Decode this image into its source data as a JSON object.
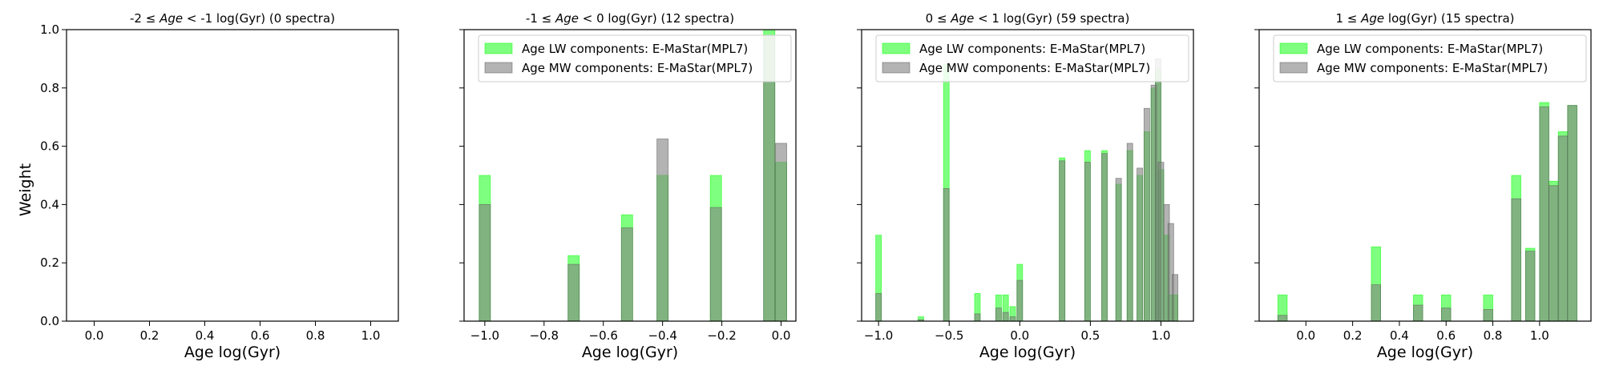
{
  "figure": {
    "ylabel": "Weight",
    "colors": {
      "lw": "#00ff00",
      "mw": "#808080"
    }
  },
  "chart_data": [
    {
      "type": "bar",
      "title_pre": "-2",
      "title_sym": "≤",
      "title_em": "Age",
      "title_post": " < -1 log(Gyr) (0 spectra)",
      "xlabel": "Age log(Gyr)",
      "ylabel": "Weight",
      "xlim": [
        -0.1,
        1.1
      ],
      "ylim": [
        0,
        1.0
      ],
      "xticks": [
        "0.0",
        "0.2",
        "0.4",
        "0.6",
        "0.8",
        "1.0"
      ],
      "xtick_values": [
        0.0,
        0.2,
        0.4,
        0.6,
        0.8,
        1.0
      ],
      "yticks": [
        "0.0",
        "0.2",
        "0.4",
        "0.6",
        "0.8",
        "1.0"
      ],
      "ytick_values": [
        0.0,
        0.2,
        0.4,
        0.6,
        0.8,
        1.0
      ],
      "show_yticklabels": true,
      "legend": null,
      "bar_width": 0,
      "series": []
    },
    {
      "type": "bar",
      "title_pre": "-1",
      "title_sym": "≤",
      "title_em": "Age",
      "title_post": " < 0 log(Gyr) (12 spectra)",
      "xlabel": "Age log(Gyr)",
      "xlim": [
        -1.07,
        0.05
      ],
      "ylim": [
        0,
        1.0
      ],
      "xticks": [
        "−1.0",
        "−0.8",
        "−0.6",
        "−0.4",
        "−0.2",
        "0.0"
      ],
      "xtick_values": [
        -1.0,
        -0.8,
        -0.6,
        -0.4,
        -0.2,
        0.0
      ],
      "yticks": [],
      "ytick_values": [
        0.0,
        0.2,
        0.4,
        0.6,
        0.8,
        1.0
      ],
      "show_yticklabels": false,
      "legend": {
        "placement": "top-right",
        "entries": [
          "Age LW components: E-MaStar(MPL7)",
          "Age MW components: E-MaStar(MPL7)"
        ]
      },
      "bar_width": 0.038,
      "series": [
        {
          "name": "Age LW components: E-MaStar(MPL7)",
          "x": [
            -1.0,
            -0.7,
            -0.52,
            -0.4,
            -0.22,
            -0.04,
            0.0
          ],
          "values": [
            0.5,
            0.225,
            0.365,
            0.5,
            0.5,
            1.0,
            0.545
          ]
        },
        {
          "name": "Age MW components: E-MaStar(MPL7)",
          "x": [
            -1.0,
            -0.7,
            -0.52,
            -0.4,
            -0.22,
            -0.04,
            0.0
          ],
          "values": [
            0.4,
            0.195,
            0.32,
            0.625,
            0.39,
            0.98,
            0.61
          ]
        }
      ]
    },
    {
      "type": "bar",
      "title_pre": "0",
      "title_sym": "≤",
      "title_em": "Age",
      "title_post": " < 1 log(Gyr) (59 spectra)",
      "xlabel": "Age log(Gyr)",
      "xlim": [
        -1.12,
        1.23
      ],
      "ylim": [
        0,
        1.0
      ],
      "xticks": [
        "−1.0",
        "−0.5",
        "0.0",
        "0.5",
        "1.0"
      ],
      "xtick_values": [
        -1.0,
        -0.5,
        0.0,
        0.5,
        1.0
      ],
      "yticks": [],
      "ytick_values": [
        0.0,
        0.2,
        0.4,
        0.6,
        0.8,
        1.0
      ],
      "show_yticklabels": false,
      "legend": {
        "placement": "top-right",
        "entries": [
          "Age LW components: E-MaStar(MPL7)",
          "Age MW components: E-MaStar(MPL7)"
        ]
      },
      "bar_width": 0.04,
      "series": [
        {
          "name": "Age LW components: E-MaStar(MPL7)",
          "x": [
            -1.0,
            -0.7,
            -0.52,
            -0.3,
            -0.15,
            -0.1,
            -0.05,
            0.0,
            0.3,
            0.48,
            0.6,
            0.7,
            0.78,
            0.85,
            0.9,
            0.95,
            0.98,
            1.0,
            1.04,
            1.07,
            1.1
          ],
          "values": [
            0.295,
            0.015,
            0.88,
            0.095,
            0.09,
            0.09,
            0.05,
            0.195,
            0.56,
            0.585,
            0.585,
            0.47,
            0.585,
            0.5,
            0.65,
            0.8,
            0.865,
            0.52,
            0.295,
            0.09,
            0.09
          ]
        },
        {
          "name": "Age MW components: E-MaStar(MPL7)",
          "x": [
            -1.0,
            -0.7,
            -0.52,
            -0.3,
            -0.15,
            -0.1,
            -0.05,
            0.0,
            0.3,
            0.48,
            0.6,
            0.7,
            0.78,
            0.85,
            0.9,
            0.95,
            0.98,
            1.0,
            1.04,
            1.07,
            1.1
          ],
          "values": [
            0.095,
            0.005,
            0.455,
            0.025,
            0.045,
            0.03,
            0.015,
            0.14,
            0.55,
            0.545,
            0.575,
            0.49,
            0.61,
            0.525,
            0.73,
            0.81,
            0.9,
            0.545,
            0.4,
            0.335,
            0.16
          ]
        }
      ]
    },
    {
      "type": "bar",
      "title_pre": "1",
      "title_sym": "≤",
      "title_em": "Age",
      "title_post": " log(Gyr) (15 spectra)",
      "xlabel": "Age log(Gyr)",
      "xlim": [
        -0.2,
        1.22
      ],
      "ylim": [
        0,
        1.0
      ],
      "xticks": [
        "0.0",
        "0.2",
        "0.4",
        "0.6",
        "0.8",
        "1.0"
      ],
      "xtick_values": [
        0.0,
        0.2,
        0.4,
        0.6,
        0.8,
        1.0
      ],
      "yticks": [],
      "ytick_values": [
        0.0,
        0.2,
        0.4,
        0.6,
        0.8,
        1.0
      ],
      "show_yticklabels": false,
      "legend": {
        "placement": "top-right",
        "entries": [
          "Age LW components: E-MaStar(MPL7)",
          "Age MW components: E-MaStar(MPL7)"
        ]
      },
      "bar_width": 0.04,
      "series": [
        {
          "name": "Age LW components: E-MaStar(MPL7)",
          "x": [
            -0.1,
            0.3,
            0.48,
            0.6,
            0.78,
            0.9,
            0.96,
            1.02,
            1.06,
            1.1,
            1.14
          ],
          "values": [
            0.09,
            0.255,
            0.09,
            0.09,
            0.09,
            0.5,
            0.25,
            0.75,
            0.48,
            0.65,
            0.74
          ]
        },
        {
          "name": "Age MW components: E-MaStar(MPL7)",
          "x": [
            -0.1,
            0.3,
            0.48,
            0.6,
            0.78,
            0.9,
            0.96,
            1.02,
            1.06,
            1.1,
            1.14
          ],
          "values": [
            0.02,
            0.125,
            0.055,
            0.045,
            0.04,
            0.42,
            0.24,
            0.735,
            0.465,
            0.635,
            0.74
          ]
        }
      ]
    }
  ]
}
